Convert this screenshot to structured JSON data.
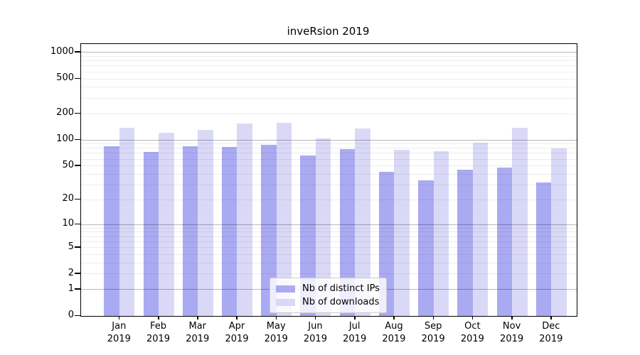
{
  "title": "inveRsion 2019",
  "colors": {
    "distinct_ips_bar": "#aaaaf2",
    "downloads_bar": "#d9d9f7",
    "axis": "#000000",
    "grid_minor": "rgba(0,0,0,0.07)",
    "grid_major": "rgba(0,0,0,0.28)",
    "legend_border": "#cccccc"
  },
  "legend": {
    "items": [
      {
        "label": "Nb of distinct IPs",
        "color": "#aaaaf2"
      },
      {
        "label": "Nb of downloads",
        "color": "#d9d9f7"
      }
    ]
  },
  "chart_data": {
    "type": "bar",
    "title": "inveRsion 2019",
    "categories": [
      "Jan 2019",
      "Feb 2019",
      "Mar 2019",
      "Apr 2019",
      "May 2019",
      "Jun 2019",
      "Jul 2019",
      "Aug 2019",
      "Sep 2019",
      "Oct 2019",
      "Nov 2019",
      "Dec 2019"
    ],
    "series": [
      {
        "name": "Nb of distinct IPs",
        "color": "#aaaaf2",
        "values": [
          85,
          73,
          85,
          83,
          88,
          66,
          79,
          43,
          34,
          45,
          48,
          32
        ]
      },
      {
        "name": "Nb of downloads",
        "color": "#d9d9f7",
        "values": [
          137,
          121,
          131,
          155,
          157,
          103,
          135,
          77,
          74,
          92,
          138,
          80
        ]
      }
    ],
    "xlabel": "",
    "ylabel": "",
    "y_scale": "log10(1+y)",
    "y_ticks": [
      0,
      1,
      2,
      5,
      10,
      20,
      50,
      100,
      200,
      500,
      1000
    ],
    "ylim": [
      0,
      1300
    ],
    "grid": "horizontal major and log-minor lines, drawn over bars",
    "legend_position": "lower center inside plot"
  }
}
